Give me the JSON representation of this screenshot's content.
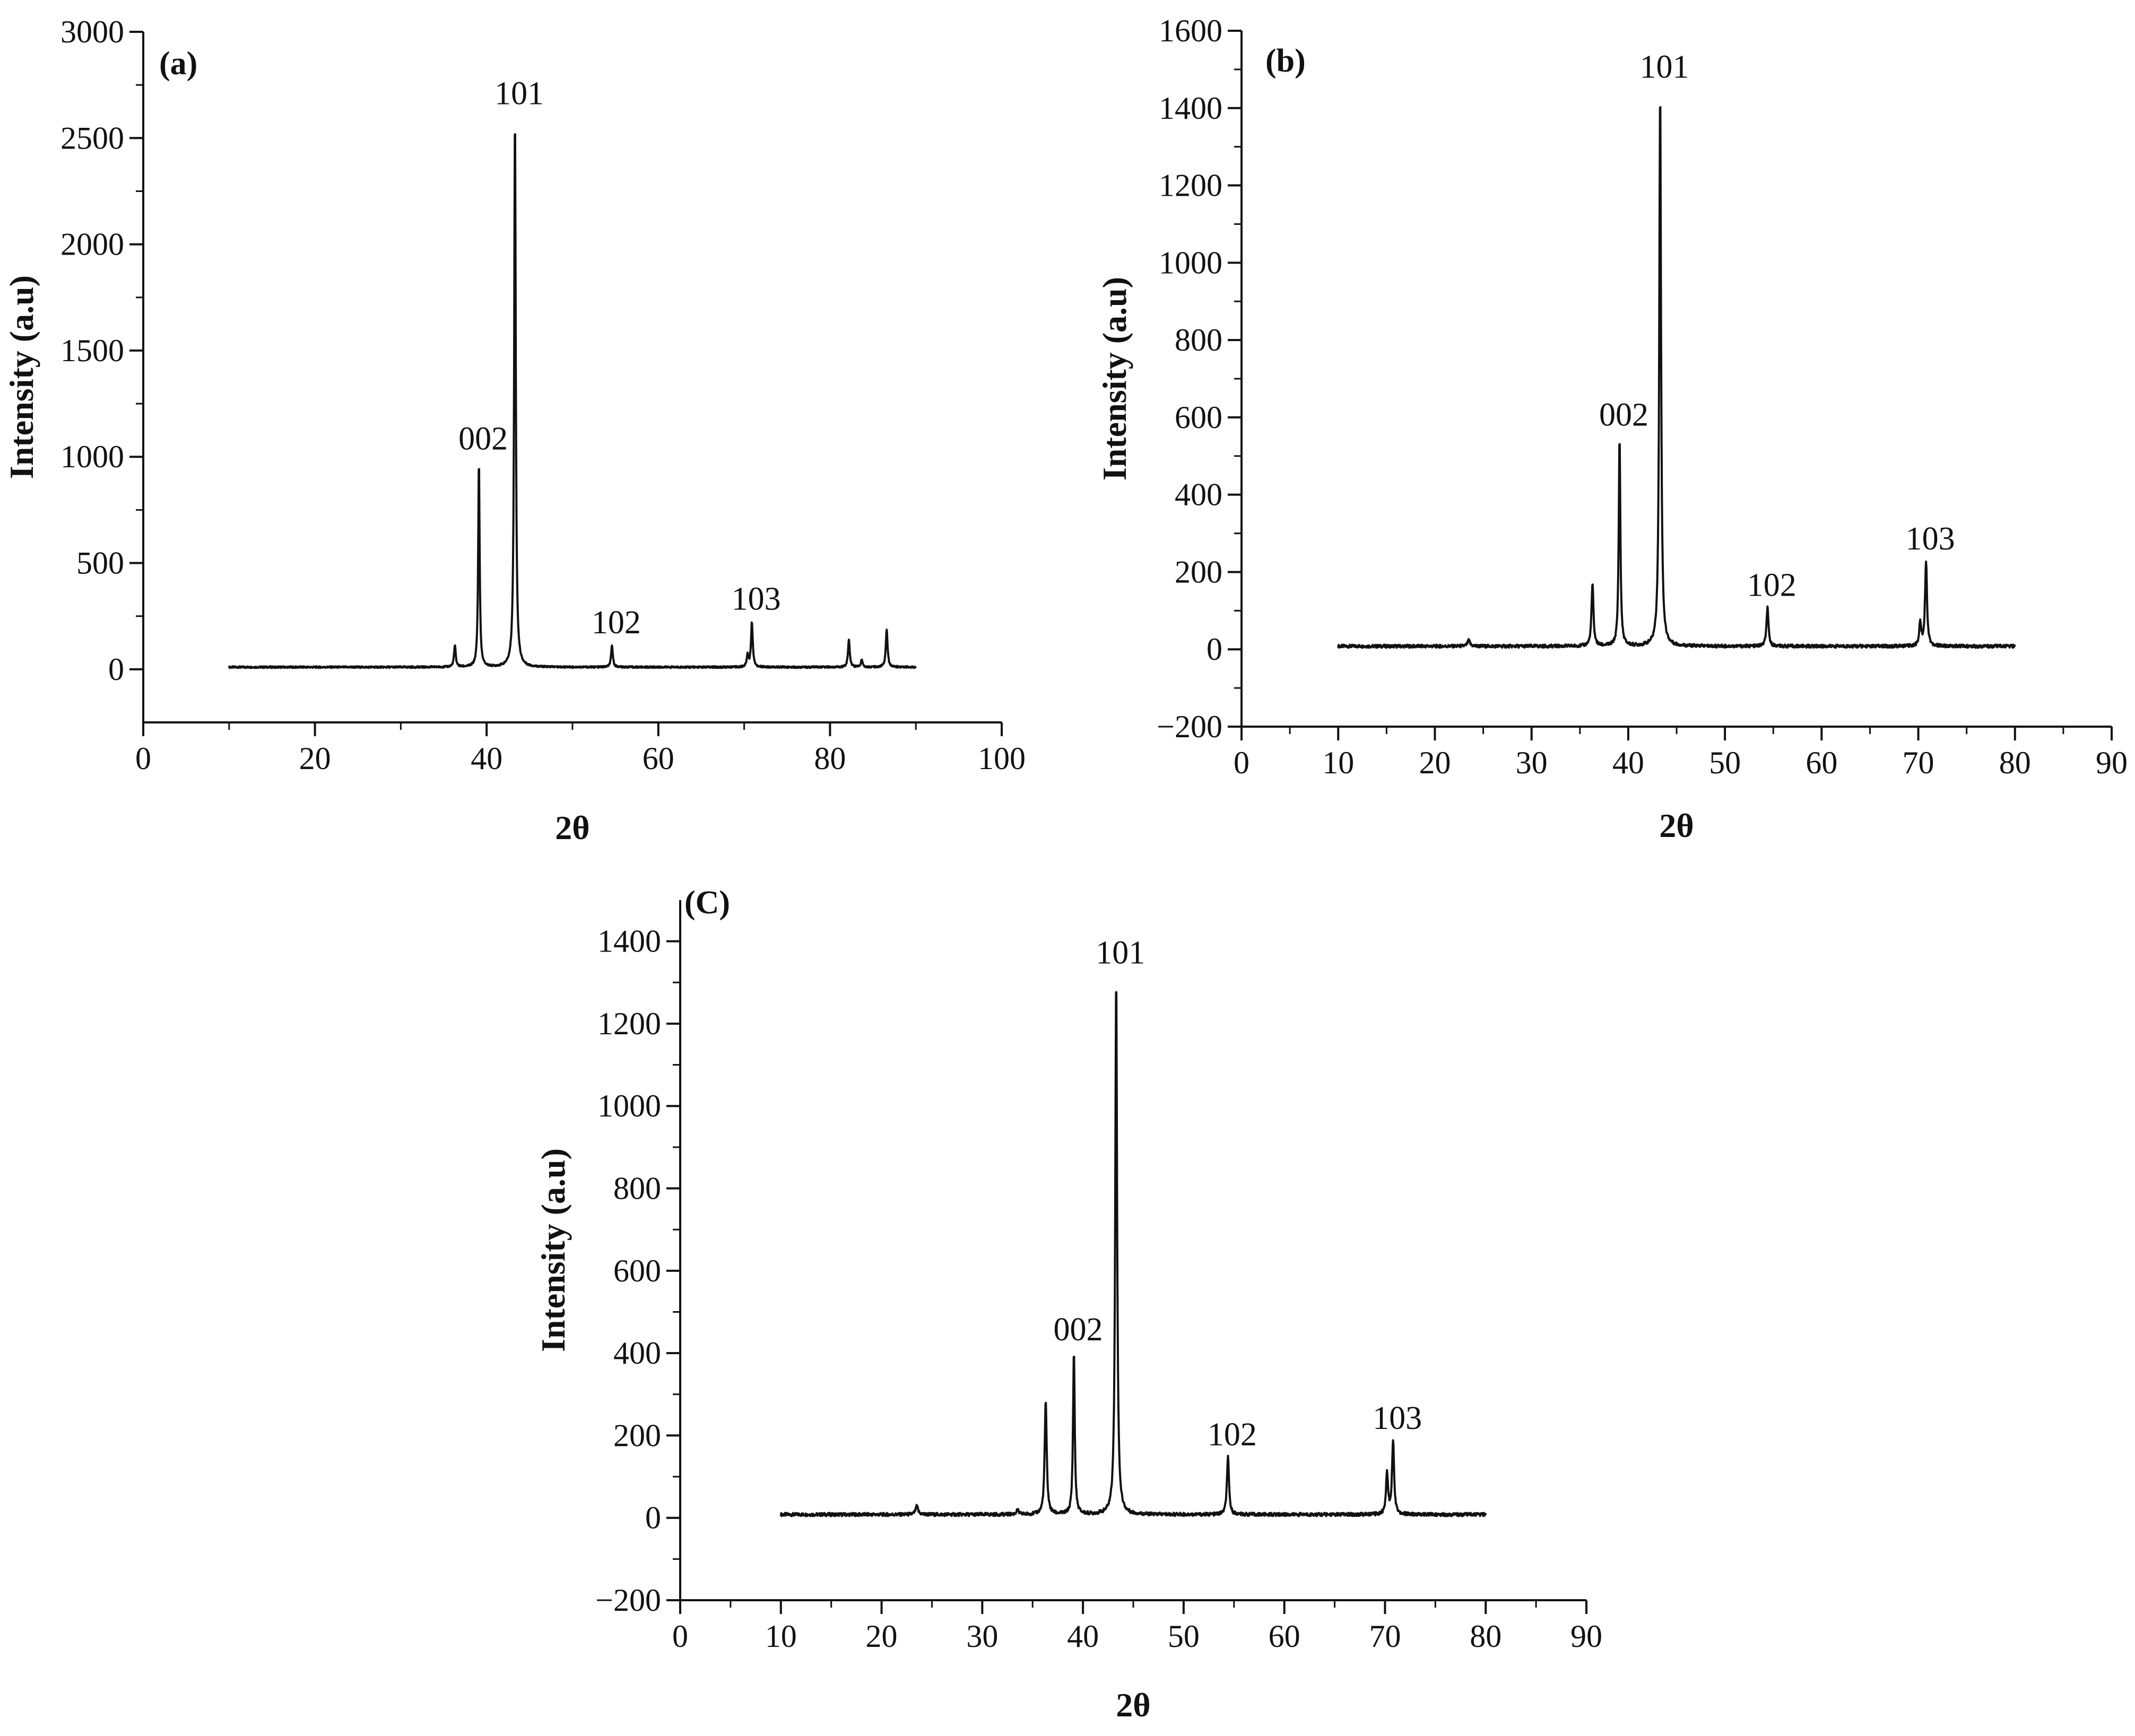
{
  "figure": {
    "panels": [
      "a",
      "b",
      "c"
    ]
  },
  "chart_data": [
    {
      "id": "a",
      "type": "line",
      "panel_label": "(a)",
      "xlabel": "2θ",
      "ylabel": "Intensity (a.u)",
      "xlim": [
        0,
        100
      ],
      "ylim": [
        -250,
        3000
      ],
      "xticks": [
        0,
        20,
        40,
        60,
        80,
        100
      ],
      "yticks": [
        0,
        500,
        1000,
        1500,
        2000,
        2500,
        3000
      ],
      "x_range": [
        10,
        90
      ],
      "baseline": 10,
      "peaks": [
        {
          "x": 36.3,
          "y": 100,
          "w": 0.12
        },
        {
          "x": 39.1,
          "y": 965,
          "w": 0.1
        },
        {
          "x": 43.3,
          "y": 2590,
          "w": 0.11
        },
        {
          "x": 54.6,
          "y": 100,
          "w": 0.12
        },
        {
          "x": 70.4,
          "y": 55,
          "w": 0.12
        },
        {
          "x": 70.9,
          "y": 210,
          "w": 0.12
        },
        {
          "x": 82.2,
          "y": 130,
          "w": 0.12
        },
        {
          "x": 83.7,
          "y": 35,
          "w": 0.12
        },
        {
          "x": 86.6,
          "y": 180,
          "w": 0.12
        }
      ],
      "annotations": [
        {
          "text": "002",
          "x": 39.1,
          "y": 965
        },
        {
          "text": "101",
          "x": 43.3,
          "y": 2590
        },
        {
          "text": "102",
          "x": 54.6,
          "y": 100
        },
        {
          "text": "103",
          "x": 70.9,
          "y": 210
        }
      ]
    },
    {
      "id": "b",
      "type": "line",
      "panel_label": "(b)",
      "xlabel": "2θ",
      "ylabel": "Intensity (a.u)",
      "xlim": [
        0,
        90
      ],
      "ylim": [
        -200,
        1600
      ],
      "xticks": [
        0,
        10,
        20,
        30,
        40,
        50,
        60,
        70,
        80,
        90
      ],
      "yticks": [
        -200,
        0,
        200,
        400,
        600,
        800,
        1000,
        1200,
        1400,
        1600
      ],
      "x_range": [
        10,
        80
      ],
      "baseline": 8,
      "peaks": [
        {
          "x": 23.5,
          "y": 15,
          "w": 0.15
        },
        {
          "x": 36.3,
          "y": 160,
          "w": 0.12
        },
        {
          "x": 39.1,
          "y": 540,
          "w": 0.1
        },
        {
          "x": 43.3,
          "y": 1440,
          "w": 0.11
        },
        {
          "x": 54.4,
          "y": 100,
          "w": 0.12
        },
        {
          "x": 70.2,
          "y": 60,
          "w": 0.12
        },
        {
          "x": 70.8,
          "y": 220,
          "w": 0.12
        }
      ],
      "annotations": [
        {
          "text": "002",
          "x": 39.1,
          "y": 540
        },
        {
          "text": "101",
          "x": 43.3,
          "y": 1440
        },
        {
          "text": "102",
          "x": 54.4,
          "y": 100
        },
        {
          "text": "103",
          "x": 70.8,
          "y": 220
        }
      ]
    },
    {
      "id": "c",
      "type": "line",
      "panel_label": "(C)",
      "xlabel": "2θ",
      "ylabel": "Intensity (a.u)",
      "xlim": [
        0,
        90
      ],
      "ylim": [
        -200,
        1500
      ],
      "xticks": [
        0,
        10,
        20,
        30,
        40,
        50,
        60,
        70,
        80,
        90
      ],
      "yticks": [
        -200,
        0,
        200,
        400,
        600,
        800,
        1000,
        1200,
        1400
      ],
      "x_range": [
        10,
        80
      ],
      "baseline": 8,
      "peaks": [
        {
          "x": 23.5,
          "y": 20,
          "w": 0.15
        },
        {
          "x": 33.5,
          "y": 10,
          "w": 0.15
        },
        {
          "x": 36.3,
          "y": 275,
          "w": 0.12
        },
        {
          "x": 39.1,
          "y": 395,
          "w": 0.1
        },
        {
          "x": 43.3,
          "y": 1310,
          "w": 0.11
        },
        {
          "x": 54.4,
          "y": 140,
          "w": 0.12
        },
        {
          "x": 70.2,
          "y": 100,
          "w": 0.12
        },
        {
          "x": 70.8,
          "y": 180,
          "w": 0.12
        }
      ],
      "annotations": [
        {
          "text": "002",
          "x": 39.1,
          "y": 395
        },
        {
          "text": "101",
          "x": 43.3,
          "y": 1310
        },
        {
          "text": "102",
          "x": 54.4,
          "y": 140
        },
        {
          "text": "103",
          "x": 70.8,
          "y": 180
        }
      ]
    }
  ]
}
